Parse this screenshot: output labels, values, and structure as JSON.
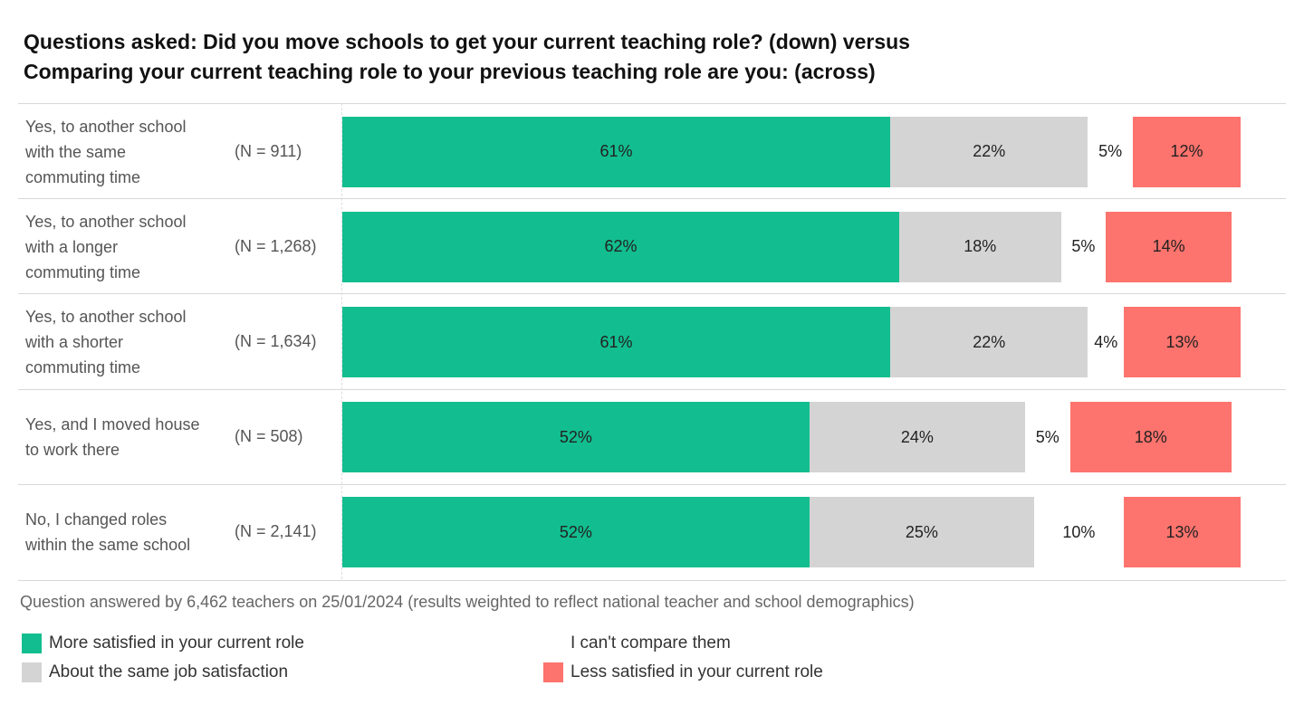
{
  "chart_data": {
    "type": "bar",
    "stacked": true,
    "orientation": "horizontal",
    "title": [
      "Questions asked: Did you move schools to get your current teaching role?  (down) versus",
      "Comparing your current teaching role to your previous teaching role are you: (across)"
    ],
    "categories": [
      {
        "label": [
          "Yes, to another school",
          "with the same",
          "commuting time"
        ],
        "n": "(N = 911)"
      },
      {
        "label": [
          "Yes, to another school",
          "with a longer",
          "commuting time"
        ],
        "n": "(N = 1,268)"
      },
      {
        "label": [
          "Yes, to another school",
          "with a shorter",
          "commuting time"
        ],
        "n": "(N = 1,634)"
      },
      {
        "label": [
          "Yes, and I moved house",
          "to work there"
        ],
        "n": "(N = 508)"
      },
      {
        "label": [
          "No, I changed roles",
          "within the same school"
        ],
        "n": "(N = 2,141)"
      }
    ],
    "series": [
      {
        "name": "More satisfied in your current role",
        "color": "#12be8f",
        "values": [
          61,
          62,
          61,
          52,
          52
        ]
      },
      {
        "name": "About the same job satisfaction",
        "color": "#d4d4d4",
        "values": [
          22,
          18,
          22,
          24,
          25
        ]
      },
      {
        "name": "I can't compare them",
        "color": "#ffffff",
        "values": [
          5,
          5,
          4,
          5,
          10
        ]
      },
      {
        "name": "Less satisfied in your current role",
        "color": "#fd736d",
        "values": [
          12,
          14,
          13,
          18,
          13
        ]
      }
    ],
    "xlim": [
      0,
      100
    ],
    "value_suffix": "%",
    "legend_order": [
      0,
      2,
      1,
      3
    ]
  },
  "note": "Question answered by 6,462 teachers on 25/01/2024 (results weighted to reflect national teacher and school demographics)"
}
